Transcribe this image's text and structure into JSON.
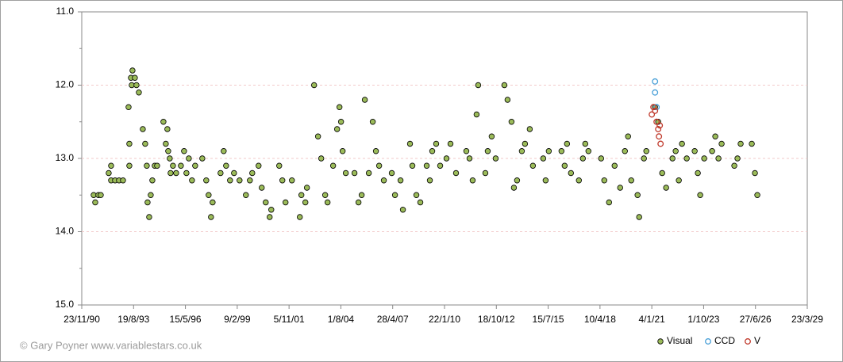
{
  "chart_data": {
    "type": "scatter",
    "credit": "© Gary Poyner www.variablestars.co.uk",
    "xlim": [
      33200,
      47200
    ],
    "xticks": [
      {
        "value": 33200,
        "label": "23/11/90"
      },
      {
        "value": 34200,
        "label": "19/8/93"
      },
      {
        "value": 35200,
        "label": "15/5/96"
      },
      {
        "value": 36200,
        "label": "9/2/99"
      },
      {
        "value": 37200,
        "label": "5/11/01"
      },
      {
        "value": 38200,
        "label": "1/8/04"
      },
      {
        "value": 39200,
        "label": "28/4/07"
      },
      {
        "value": 40200,
        "label": "22/1/10"
      },
      {
        "value": 41200,
        "label": "18/10/12"
      },
      {
        "value": 42200,
        "label": "15/7/15"
      },
      {
        "value": 43200,
        "label": "10/4/18"
      },
      {
        "value": 44200,
        "label": "4/1/21"
      },
      {
        "value": 45200,
        "label": "1/10/23"
      },
      {
        "value": 46200,
        "label": "27/6/26"
      },
      {
        "value": 47200,
        "label": "23/3/29"
      }
    ],
    "ylim": [
      11,
      15
    ],
    "y_inverted": true,
    "yticks": [
      {
        "value": 11,
        "label": "11.0"
      },
      {
        "value": 12,
        "label": "12.0"
      },
      {
        "value": 13,
        "label": "13.0"
      },
      {
        "value": 14,
        "label": "14.0"
      },
      {
        "value": 15,
        "label": "15.0"
      }
    ],
    "yminorticks": [
      11.5,
      12.5,
      13.5,
      14.5
    ],
    "grid": true,
    "legend": "bottom-right",
    "series": [
      {
        "name": "Visual",
        "color": "#9bbb59",
        "hollow": false,
        "x": [
          33430,
          33460,
          33521,
          33567,
          33720,
          33766,
          33766,
          33843,
          33919,
          33996,
          34103,
          34118,
          34118,
          34149,
          34164,
          34179,
          34225,
          34256,
          34302,
          34378,
          34424,
          34455,
          34470,
          34501,
          34531,
          34562,
          34608,
          34654,
          34776,
          34822,
          34852,
          34868,
          34898,
          34914,
          34960,
          35021,
          35113,
          35174,
          35220,
          35266,
          35327,
          35388,
          35526,
          35602,
          35648,
          35694,
          35725,
          35878,
          35939,
          35985,
          36061,
          36138,
          36245,
          36367,
          36444,
          36490,
          36612,
          36673,
          36750,
          36826,
          36857,
          37010,
          37071,
          37132,
          37255,
          37408,
          37438,
          37515,
          37545,
          37683,
          37759,
          37821,
          37897,
          37943,
          38050,
          38127,
          38173,
          38203,
          38234,
          38295,
          38463,
          38540,
          38601,
          38662,
          38739,
          38815,
          38876,
          38938,
          39029,
          39182,
          39244,
          39351,
          39397,
          39534,
          39580,
          39657,
          39733,
          39856,
          39917,
          39963,
          40039,
          40116,
          40238,
          40315,
          40422,
          40621,
          40682,
          40743,
          40819,
          40850,
          40988,
          41034,
          41110,
          41187,
          41355,
          41416,
          41493,
          41539,
          41600,
          41692,
          41753,
          41845,
          41906,
          42105,
          42151,
          42212,
          42457,
          42518,
          42564,
          42640,
          42793,
          42870,
          42916,
          42977,
          43222,
          43283,
          43375,
          43482,
          43589,
          43681,
          43742,
          43803,
          43925,
          43956,
          44048,
          44094,
          44262,
          44323,
          44400,
          44476,
          44599,
          44660,
          44721,
          44782,
          44874,
          45027,
          45088,
          45134,
          45211,
          45364,
          45425,
          45486,
          45547,
          45792,
          45853,
          45914,
          46129,
          46190,
          46236
        ],
        "values": [
          13.5,
          13.6,
          13.5,
          13.5,
          13.2,
          13.1,
          13.3,
          13.3,
          13.3,
          13.3,
          12.3,
          13.1,
          12.8,
          11.9,
          12.0,
          11.8,
          11.9,
          12.0,
          12.1,
          12.6,
          12.8,
          13.1,
          13.6,
          13.8,
          13.5,
          13.3,
          13.1,
          13.1,
          12.5,
          12.8,
          12.6,
          12.9,
          13.0,
          13.2,
          13.1,
          13.2,
          13.1,
          12.9,
          13.2,
          13.0,
          13.3,
          13.1,
          13.0,
          13.3,
          13.5,
          13.8,
          13.6,
          13.2,
          12.9,
          13.1,
          13.3,
          13.2,
          13.3,
          13.5,
          13.3,
          13.2,
          13.1,
          13.4,
          13.6,
          13.8,
          13.7,
          13.1,
          13.3,
          13.6,
          13.3,
          13.8,
          13.5,
          13.6,
          13.4,
          12.0,
          12.7,
          13.0,
          13.5,
          13.6,
          13.1,
          12.6,
          12.3,
          12.5,
          12.9,
          13.2,
          13.2,
          13.6,
          13.5,
          12.2,
          13.2,
          12.5,
          12.9,
          13.1,
          13.3,
          13.2,
          13.5,
          13.3,
          13.7,
          12.8,
          13.1,
          13.5,
          13.6,
          13.1,
          13.3,
          12.9,
          12.8,
          13.1,
          13.0,
          12.8,
          13.2,
          12.9,
          13.0,
          13.3,
          12.4,
          12.0,
          13.2,
          12.9,
          12.7,
          13.0,
          12.0,
          12.2,
          12.5,
          13.4,
          13.3,
          12.9,
          12.8,
          12.6,
          13.1,
          13.0,
          13.3,
          12.9,
          12.9,
          13.1,
          12.8,
          13.2,
          13.3,
          13.0,
          12.8,
          12.9,
          13.0,
          13.3,
          13.6,
          13.1,
          13.4,
          12.9,
          12.7,
          13.3,
          13.5,
          13.8,
          13.0,
          12.9,
          12.3,
          12.5,
          13.2,
          13.4,
          13.0,
          12.9,
          13.3,
          12.8,
          13.0,
          12.9,
          13.2,
          13.5,
          13.0,
          12.9,
          12.7,
          13.0,
          12.8,
          13.1,
          13.0,
          12.8,
          12.8,
          13.2,
          13.5
        ]
      },
      {
        "name": "CCD",
        "color": "#4aa0d8",
        "hollow": true,
        "x": [
          44262,
          44262,
          44292
        ],
        "values": [
          11.95,
          12.1,
          12.3
        ]
      },
      {
        "name": "V",
        "color": "#c0392b",
        "hollow": true,
        "x": [
          44200,
          44231,
          44262,
          44292,
          44323,
          44338,
          44354,
          44369
        ],
        "values": [
          12.4,
          12.3,
          12.35,
          12.5,
          12.6,
          12.7,
          12.55,
          12.8
        ]
      }
    ]
  }
}
